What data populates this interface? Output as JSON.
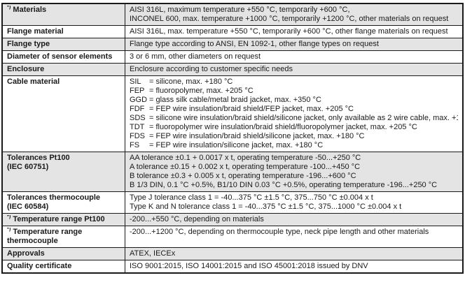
{
  "document": {
    "type": "specification-table",
    "colors": {
      "row_shade": "#e4e4e4",
      "border": "#1a1a1a",
      "text": "#1a1a1a",
      "background": "#ffffff"
    }
  },
  "rows": [
    {
      "prefix": "*)",
      "label": "Materials",
      "values": [
        "AISI 316L, maximum temperature +550 °C, temporarily +600 °C,",
        "INCONEL 600, max. temperature +1000 °C, temporarily +1200 °C, other materials on request"
      ]
    },
    {
      "prefix": "",
      "label": "Flange material",
      "values": [
        "AISI 316L, max. temperature +550 °C, temporarily +600 °C, other flange materials on request"
      ]
    },
    {
      "prefix": "",
      "label": "Flange type",
      "values": [
        "Flange type according to ANSI, EN 1092-1, other flange types on request"
      ]
    },
    {
      "prefix": "",
      "label": "Diameter of sensor elements",
      "values": [
        "3 or 6 mm, other diameters on request"
      ]
    },
    {
      "prefix": "",
      "label": "Enclosure",
      "values": [
        "Enclosure according to customer specific needs"
      ]
    },
    {
      "prefix": "",
      "label": "Cable material",
      "cable": [
        {
          "code": "SIL",
          "desc": "= silicone, max. +180 °C"
        },
        {
          "code": "FEP",
          "desc": "= fluoropolymer, max. +205 °C"
        },
        {
          "code": "GGD",
          "desc": "= glass silk cable/metal braid jacket, max. +350 °C"
        },
        {
          "code": "FDF",
          "desc": "= FEP wire insulation/braid shield/FEP jacket, max. +205 °C"
        },
        {
          "code": "SDS",
          "desc": "= silicone wire insulation/braid shield/silicone jacket, only available as 2 wire cable, max. +180 °C"
        },
        {
          "code": "TDT",
          "desc": "= fluoropolymer wire insulation/braid shield/fluoropolymer jacket, max. +205 °C"
        },
        {
          "code": "FDS",
          "desc": "= FEP wire insulation/braid shield/silicone jacket, max. +180 °C"
        },
        {
          "code": "FS",
          "desc": "= FEP wire insulation/silicone jacket, max. +180 °C"
        }
      ]
    },
    {
      "prefix": "",
      "label": "Tolerances Pt100",
      "sublabel": "(IEC 60751)",
      "values": [
        "AA tolerance ±0.1 + 0.0017 x t, operating temperature -50...+250 °C",
        "A tolerance ±0.15 + 0.002 x t, operating temperature -100...+450 °C",
        "B tolerance ±0.3 + 0.005 x t, operating temperature -196...+600 °C",
        "B 1/3 DIN, 0.1 °C +0.5%, B1/10 DIN 0.03 °C +0.5%, operating temperature -196...+250 °C"
      ]
    },
    {
      "prefix": "",
      "label": "Tolerances thermocouple",
      "sublabel": "(IEC 60584)",
      "values": [
        "Type J tolerance class 1 = -40...375 °C ±1.5 °C, 375...750 °C ±0.004 x t",
        "Type K and N tolerance class 1 = -40...375 °C ±1.5 °C, 375...1000 °C ±0.004 x t"
      ]
    },
    {
      "prefix": "*)",
      "label": "Temperature range Pt100",
      "values": [
        "-200...+550 °C, depending on materials"
      ]
    },
    {
      "prefix": "*)",
      "label": "Temperature range",
      "sublabel": "thermocouple",
      "values": [
        "-200...+1200 °C, depending on thermocouple type, neck pipe length and other materials"
      ]
    },
    {
      "prefix": "",
      "label": "Approvals",
      "values": [
        "ATEX, IECEx"
      ]
    },
    {
      "prefix": "",
      "label": "Quality certificate",
      "values": [
        "ISO 9001:2015, ISO 14001:2015 and ISO 45001:2018 issued by DNV"
      ]
    }
  ]
}
